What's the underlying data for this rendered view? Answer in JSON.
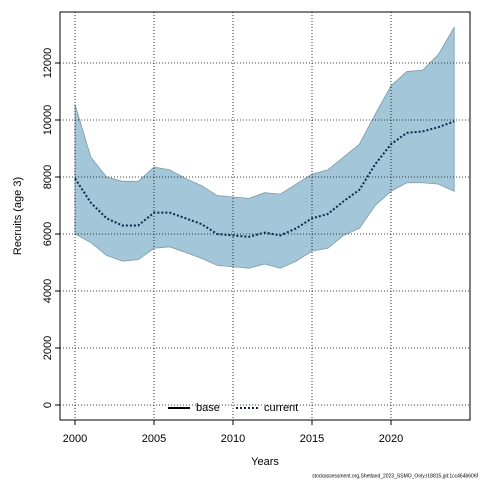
{
  "chart_data": {
    "type": "line",
    "x_label": "Years",
    "y_label": "Recruits (age 3)",
    "footer": "stockassessment.org,Shetland_2023_SSMO_Only,r18815,git:1cc464b606f",
    "x": [
      2000,
      2001,
      2002,
      2003,
      2004,
      2005,
      2006,
      2007,
      2008,
      2009,
      2010,
      2011,
      2012,
      2013,
      2014,
      2015,
      2016,
      2017,
      2018,
      2019,
      2020,
      2021,
      2022,
      2023,
      2024
    ],
    "series": [
      {
        "name": "current",
        "color": "#0a2a50",
        "values": [
          7950,
          7100,
          6550,
          6300,
          6300,
          6750,
          6750,
          6550,
          6350,
          6000,
          5950,
          5900,
          6050,
          5950,
          6200,
          6550,
          6700,
          7150,
          7550,
          8450,
          9150,
          9550,
          9600,
          9750,
          9950
        ]
      }
    ],
    "band": {
      "color": "#a3c6d8",
      "upper": [
        10550,
        8700,
        8000,
        7850,
        7850,
        8350,
        8250,
        7950,
        7700,
        7350,
        7300,
        7250,
        7450,
        7400,
        7750,
        8100,
        8250,
        8700,
        9150,
        10200,
        11200,
        11700,
        11750,
        12300,
        13250
      ],
      "lower": [
        6000,
        5700,
        5250,
        5050,
        5100,
        5500,
        5550,
        5350,
        5150,
        4900,
        4850,
        4800,
        4950,
        4800,
        5050,
        5400,
        5500,
        5950,
        6200,
        7000,
        7500,
        7800,
        7800,
        7750,
        7500
      ]
    },
    "legend_entries": [
      {
        "name": "base",
        "color": "#000000",
        "style": "solid"
      },
      {
        "name": "current",
        "color": "#0a2a50",
        "style": "dotted"
      }
    ],
    "legend": "bottom",
    "xlim": [
      1999.05,
      2025.0
    ],
    "xticks": [
      2000,
      2005,
      2010,
      2015,
      2020
    ],
    "ylim": [
      -526,
      13790
    ],
    "yticks": [
      0,
      2000,
      4000,
      6000,
      8000,
      10000,
      12000
    ],
    "grid": true
  }
}
